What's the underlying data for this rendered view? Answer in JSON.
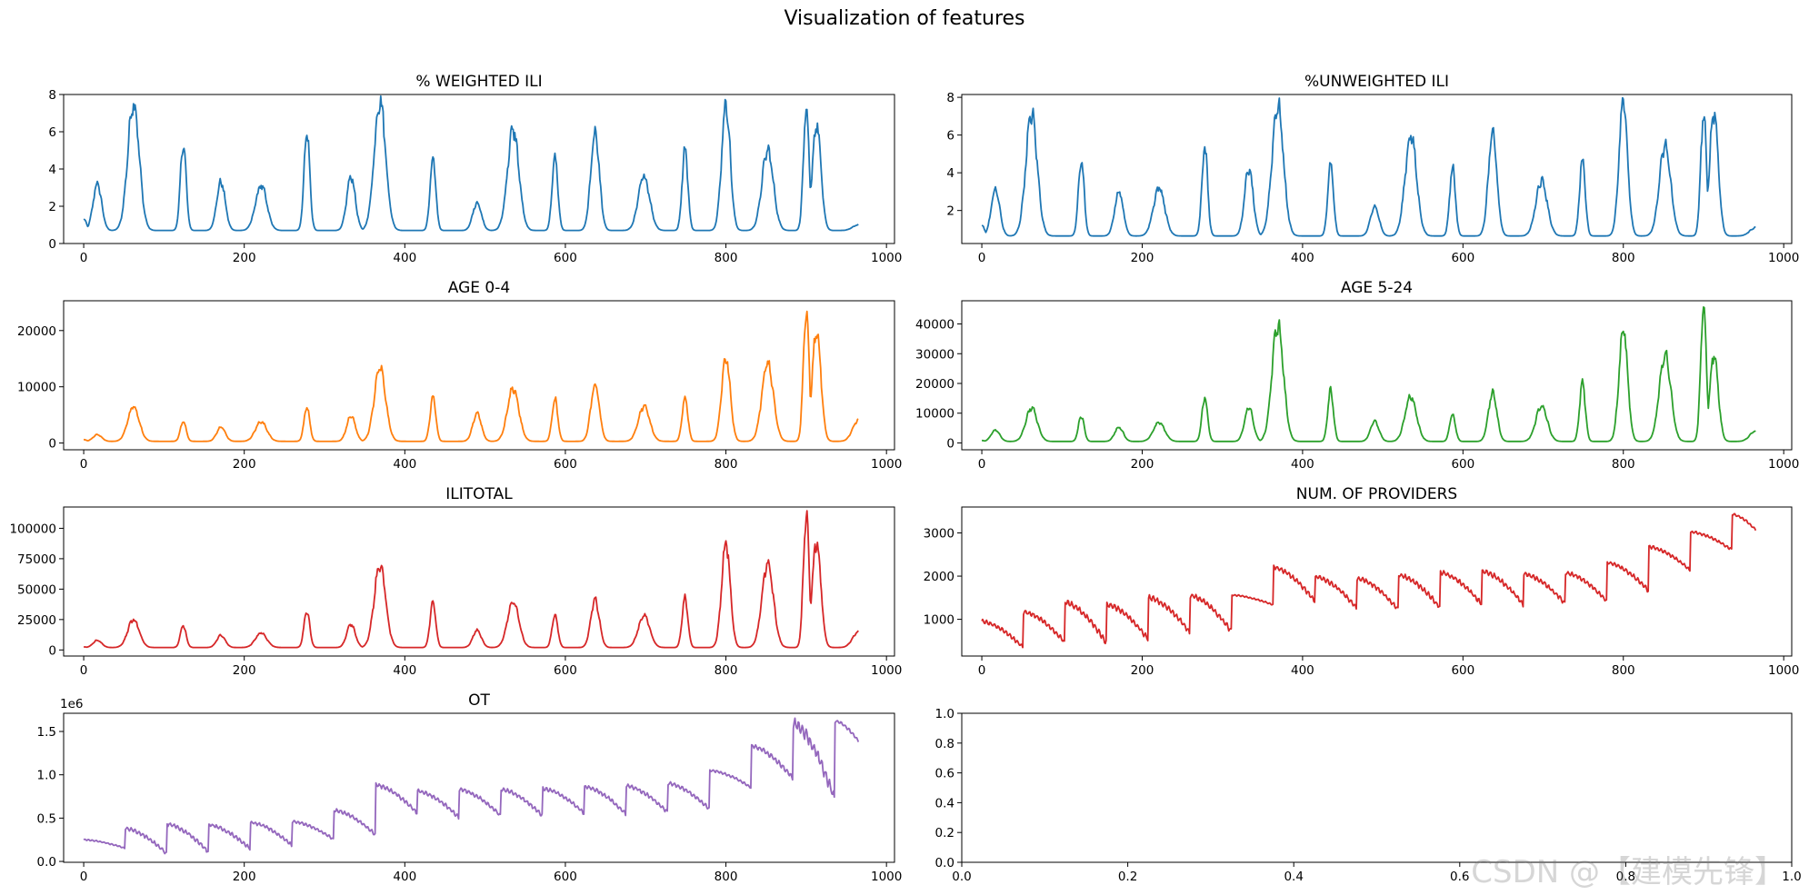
{
  "chart_data": {
    "suptitle": "Visualization of features",
    "watermark": "CSDN @【建模先锋】",
    "panels": [
      {
        "id": "weighted-ili",
        "type": "line",
        "title": "% WEIGHTED ILI",
        "color": "#1f77b4",
        "xlim": [
          -25,
          1010
        ],
        "ylim": [
          0,
          8
        ],
        "xticks": [
          0,
          200,
          400,
          600,
          800,
          1000
        ],
        "xtick_labels": [
          "0",
          "200",
          "400",
          "600",
          "800",
          "1000"
        ],
        "yticks": [
          0,
          2,
          4,
          6,
          8
        ],
        "ytick_labels": [
          "0",
          "2",
          "4",
          "6",
          "8"
        ],
        "profile": {
          "n": 966,
          "base": 0.7,
          "jitter": 0.12,
          "x": [
            0,
            17,
            62,
            124,
            171,
            221,
            278,
            333,
            369,
            435,
            490,
            535,
            587,
            637,
            698,
            749,
            800,
            852,
            900,
            913,
            965
          ],
          "y": [
            1.3,
            3.2,
            7.6,
            5.4,
            3.3,
            3.1,
            6.0,
            3.6,
            7.7,
            4.5,
            2.2,
            6.1,
            4.6,
            6.0,
            3.6,
            5.1,
            7.5,
            5.0,
            7.0,
            6.4,
            1.0
          ]
        }
      },
      {
        "id": "unweighted-ili",
        "type": "line",
        "title": "%UNWEIGHTED ILI",
        "color": "#1f77b4",
        "xlim": [
          -25,
          1010
        ],
        "ylim": [
          0.25,
          8.15
        ],
        "xticks": [
          0,
          200,
          400,
          600,
          800,
          1000
        ],
        "xtick_labels": [
          "0",
          "200",
          "400",
          "600",
          "800",
          "1000"
        ],
        "yticks": [
          2,
          4,
          6,
          8
        ],
        "ytick_labels": [
          "2",
          "4",
          "6",
          "8"
        ],
        "profile": {
          "n": 966,
          "base": 0.65,
          "jitter": 0.12,
          "x": [
            0,
            17,
            62,
            124,
            171,
            221,
            278,
            333,
            369,
            435,
            490,
            535,
            587,
            637,
            698,
            749,
            800,
            852,
            900,
            913,
            965
          ],
          "y": [
            1.2,
            3.1,
            7.1,
            4.7,
            3.0,
            3.2,
            5.4,
            4.2,
            7.6,
            4.4,
            2.2,
            6.0,
            4.3,
            6.1,
            3.6,
            4.7,
            7.8,
            5.4,
            7.1,
            7.3,
            1.1
          ]
        }
      },
      {
        "id": "age-0-4",
        "type": "line",
        "title": "AGE 0-4",
        "color": "#ff7f0e",
        "xlim": [
          -25,
          1010
        ],
        "ylim": [
          -1200,
          25300
        ],
        "xticks": [
          0,
          200,
          400,
          600,
          800,
          1000
        ],
        "xtick_labels": [
          "0",
          "200",
          "400",
          "600",
          "800",
          "1000"
        ],
        "yticks": [
          0,
          10000,
          20000
        ],
        "ytick_labels": [
          "0",
          "10000",
          "20000"
        ],
        "profile": {
          "n": 966,
          "base": 300,
          "jitter": 0.1,
          "x": [
            0,
            17,
            62,
            124,
            171,
            221,
            278,
            333,
            369,
            435,
            490,
            535,
            587,
            637,
            698,
            749,
            800,
            852,
            900,
            913,
            965
          ],
          "y": [
            600,
            1500,
            6500,
            3800,
            2800,
            3800,
            6300,
            4900,
            13200,
            8200,
            5200,
            9700,
            7800,
            10300,
            6500,
            8100,
            15300,
            14200,
            24100,
            20100,
            4000
          ]
        }
      },
      {
        "id": "age-5-24",
        "type": "line",
        "title": "AGE 5-24",
        "color": "#2ca02c",
        "xlim": [
          -25,
          1010
        ],
        "ylim": [
          -2300,
          47800
        ],
        "xticks": [
          0,
          200,
          400,
          600,
          800,
          1000
        ],
        "xtick_labels": [
          "0",
          "200",
          "400",
          "600",
          "800",
          "1000"
        ],
        "yticks": [
          0,
          10000,
          20000,
          30000,
          40000
        ],
        "ytick_labels": [
          "0",
          "10000",
          "20000",
          "30000",
          "40000"
        ],
        "profile": {
          "n": 966,
          "base": 500,
          "jitter": 0.1,
          "x": [
            0,
            17,
            62,
            124,
            171,
            221,
            278,
            333,
            369,
            435,
            490,
            535,
            587,
            637,
            698,
            749,
            800,
            852,
            900,
            913,
            965
          ],
          "y": [
            800,
            4300,
            11800,
            9000,
            5300,
            6800,
            15300,
            12000,
            39800,
            17500,
            7200,
            15700,
            9600,
            16700,
            12400,
            20300,
            38900,
            30000,
            45600,
            29400,
            4000
          ]
        }
      },
      {
        "id": "ilitotal",
        "type": "line",
        "title": "ILITOTAL",
        "color": "#d62728",
        "xlim": [
          -25,
          1010
        ],
        "ylim": [
          -5000,
          117500
        ],
        "xticks": [
          0,
          200,
          400,
          600,
          800,
          1000
        ],
        "xtick_labels": [
          "0",
          "200",
          "400",
          "600",
          "800",
          "1000"
        ],
        "yticks": [
          0,
          25000,
          50000,
          75000,
          100000
        ],
        "ytick_labels": [
          "0",
          "25000",
          "50000",
          "75000",
          "100000"
        ],
        "profile": {
          "n": 966,
          "base": 2000,
          "jitter": 0.1,
          "x": [
            0,
            17,
            62,
            124,
            171,
            221,
            278,
            333,
            369,
            435,
            490,
            535,
            587,
            637,
            698,
            749,
            800,
            852,
            900,
            913,
            965
          ],
          "y": [
            2500,
            8000,
            25000,
            20000,
            12000,
            14000,
            32000,
            21000,
            70000,
            40000,
            16000,
            40000,
            29000,
            41000,
            28000,
            43000,
            88000,
            71000,
            112000,
            89000,
            15000
          ]
        }
      },
      {
        "id": "num-providers",
        "type": "line",
        "title": "NUM. OF PROVIDERS",
        "color": "#d62728",
        "xlim": [
          -25,
          1010
        ],
        "ylim": [
          150,
          3600
        ],
        "xticks": [
          0,
          200,
          400,
          600,
          800,
          1000
        ],
        "xtick_labels": [
          "0",
          "200",
          "400",
          "600",
          "800",
          "1000"
        ],
        "yticks": [
          1000,
          2000,
          3000
        ],
        "ytick_labels": [
          "1000",
          "2000",
          "3000"
        ],
        "seasons": {
          "starts": [
            0,
            52,
            104,
            156,
            208,
            260,
            312,
            364,
            416,
            468,
            520,
            572,
            624,
            676,
            728,
            780,
            832,
            884,
            936
          ],
          "highs": [
            950,
            1170,
            1390,
            1340,
            1500,
            1550,
            1560,
            2200,
            1980,
            1950,
            2020,
            2080,
            2110,
            2050,
            2080,
            2310,
            2680,
            3020,
            3430
          ],
          "lows": [
            330,
            450,
            430,
            520,
            680,
            700,
            1330,
            1400,
            1250,
            1200,
            1250,
            1330,
            1320,
            1350,
            1400,
            1650,
            2120,
            2600,
            3050
          ]
        }
      },
      {
        "id": "ot",
        "type": "line",
        "title": "OT",
        "color": "#9467bd",
        "offset_text": "1e6",
        "xlim": [
          -25,
          1010
        ],
        "ylim": [
          -10000,
          1710000
        ],
        "xticks": [
          0,
          200,
          400,
          600,
          800,
          1000
        ],
        "xtick_labels": [
          "0",
          "200",
          "400",
          "600",
          "800",
          "1000"
        ],
        "yticks": [
          0,
          500000,
          1000000,
          1500000
        ],
        "ytick_labels": [
          "0.0",
          "0.5",
          "1.0",
          "1.5"
        ],
        "seasons": {
          "starts": [
            0,
            52,
            104,
            156,
            208,
            260,
            312,
            364,
            416,
            468,
            520,
            572,
            624,
            676,
            728,
            780,
            832,
            884,
            936
          ],
          "highs": [
            250000,
            380000,
            430000,
            420000,
            450000,
            460000,
            590000,
            880000,
            810000,
            830000,
            830000,
            840000,
            860000,
            870000,
            900000,
            1050000,
            1330000,
            1590000,
            1620000
          ],
          "lows": [
            150000,
            80000,
            100000,
            140000,
            180000,
            250000,
            300000,
            550000,
            500000,
            520000,
            520000,
            550000,
            540000,
            560000,
            600000,
            850000,
            950000,
            700000,
            1380000
          ]
        }
      },
      {
        "id": "empty",
        "type": "line",
        "title": "",
        "xlim": [
          0,
          1
        ],
        "ylim": [
          0,
          1
        ],
        "xticks": [
          0,
          0.2,
          0.4,
          0.6,
          0.8,
          1.0
        ],
        "xtick_labels": [
          "0.0",
          "0.2",
          "0.4",
          "0.6",
          "0.8",
          "1.0"
        ],
        "yticks": [
          0,
          0.2,
          0.4,
          0.6,
          0.8,
          1.0
        ],
        "ytick_labels": [
          "0.0",
          "0.2",
          "0.4",
          "0.6",
          "0.8",
          "1.0"
        ]
      }
    ]
  }
}
